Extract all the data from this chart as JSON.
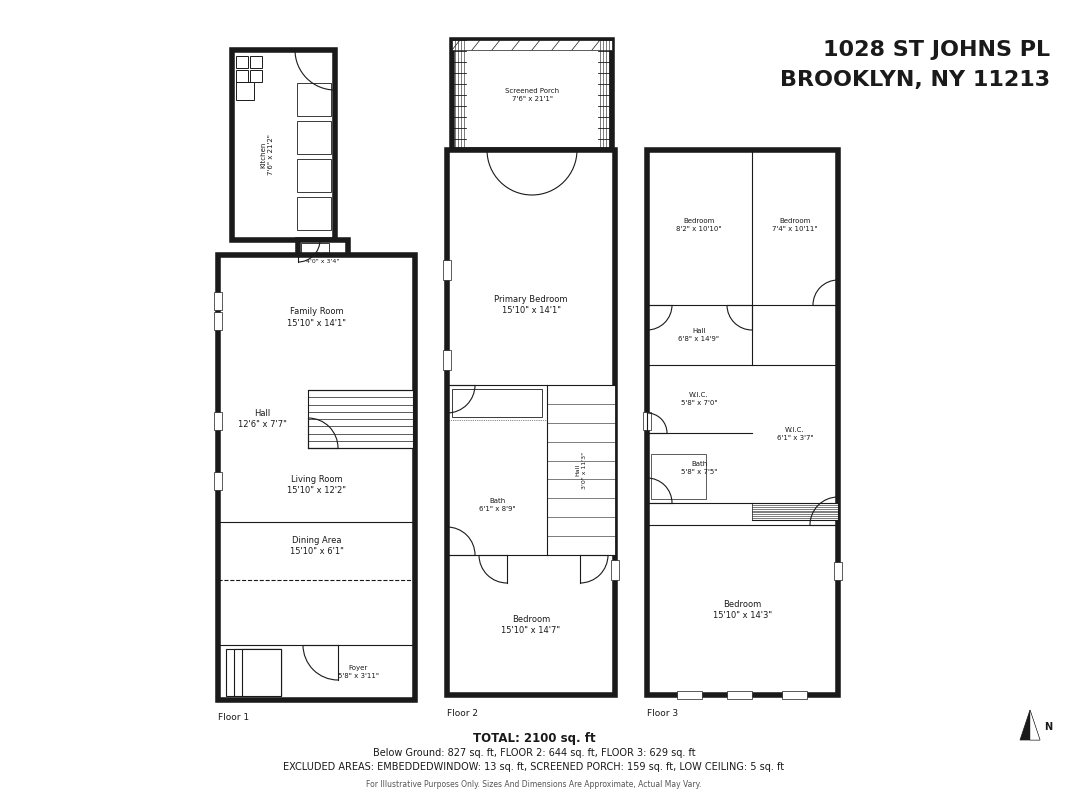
{
  "title_line1": "1028 ST JOHNS PL",
  "title_line2": "BROOKLYN, NY 11213",
  "title_fontsize": 16,
  "background_color": "#ffffff",
  "wall_color": "#1a1a1a",
  "wall_lw": 4.0,
  "thin_lw": 0.8,
  "med_lw": 1.5,
  "text_color": "#1a1a1a",
  "fs_room": 6.0,
  "fs_small": 5.0,
  "fs_floor": 6.5,
  "footer_line1": "TOTAL: 2100 sq. ft",
  "footer_line2": "Below Ground: 827 sq. ft, FLOOR 2: 644 sq. ft, FLOOR 3: 629 sq. ft",
  "footer_line3": "EXCLUDED AREAS: EMBEDDEDWINDOW: 13 sq. ft, SCREENED PORCH: 159 sq. ft, LOW CEILING: 5 sq. ft",
  "footer_small": "For Illustrative Purposes Only. Sizes And Dimensions Are Approximate, Actual May Vary."
}
